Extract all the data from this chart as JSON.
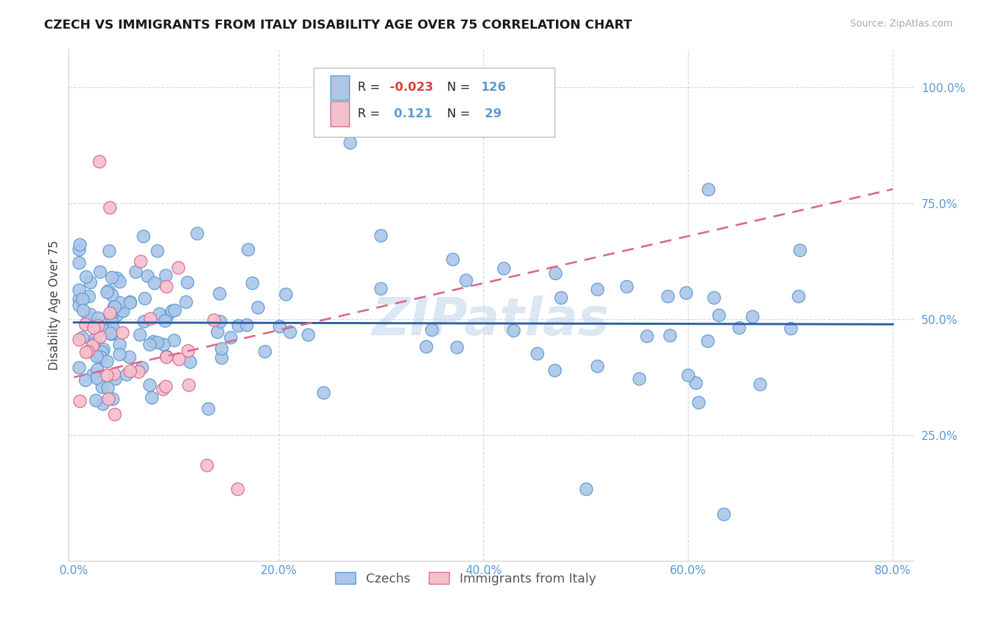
{
  "title": "CZECH VS IMMIGRANTS FROM ITALY DISABILITY AGE OVER 75 CORRELATION CHART",
  "source": "Source: ZipAtlas.com",
  "ylabel": "Disability Age Over 75",
  "watermark": "ZIPatlas",
  "xlim": [
    -0.005,
    0.82
  ],
  "ylim": [
    -0.02,
    1.08
  ],
  "xticks": [
    0.0,
    0.2,
    0.4,
    0.6,
    0.8
  ],
  "xticklabels": [
    "0.0%",
    "20.0%",
    "40.0%",
    "60.0%",
    "80.0%"
  ],
  "ytick_vals": [
    0.25,
    0.5,
    0.75,
    1.0
  ],
  "yticklabels": [
    "25.0%",
    "50.0%",
    "75.0%",
    "100.0%"
  ],
  "czech_color": "#adc6e8",
  "czech_edge": "#5b9bd5",
  "italy_color": "#f5bfcc",
  "italy_edge": "#d96b8a",
  "trend_czech_color": "#2e5fa3",
  "trend_italy_color": "#d96b8a",
  "R_czech": -0.023,
  "N_czech": 126,
  "R_italy": 0.121,
  "N_italy": 29,
  "legend_czech": "Czechs",
  "legend_italy": "Immigrants from Italy",
  "tick_color": "#5b9bd5",
  "grid_color": "#d0d8e8",
  "czech_trend_start_y": 0.493,
  "czech_trend_end_y": 0.489,
  "italy_trend_start_y": 0.375,
  "italy_trend_end_y": 0.78
}
